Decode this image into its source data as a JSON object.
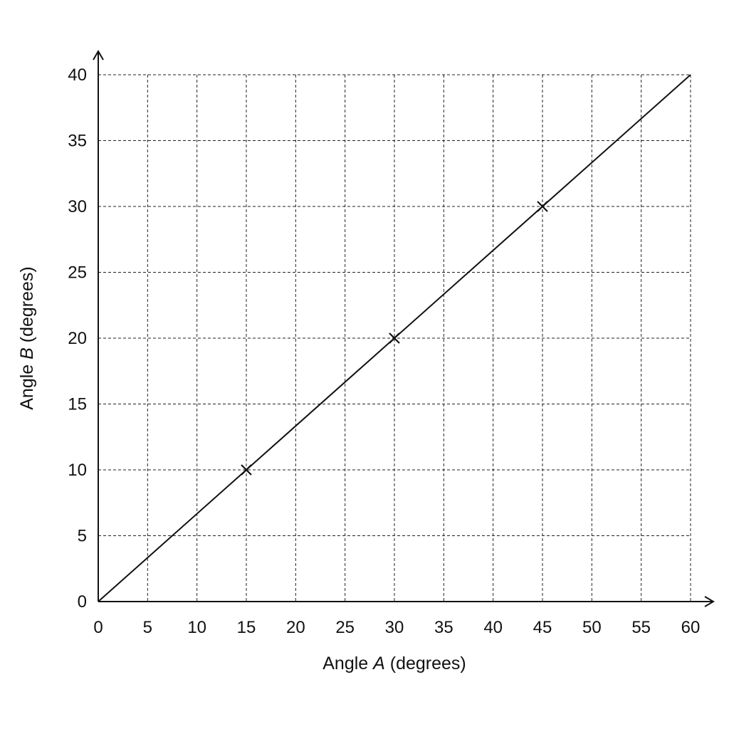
{
  "chart_data": {
    "type": "line",
    "title": "",
    "xlabel": {
      "prefix": "Angle ",
      "symbol": "A",
      "suffix": " (degrees)"
    },
    "ylabel": {
      "prefix": "Angle ",
      "symbol": "B",
      "suffix": " (degrees)"
    },
    "xlim": [
      0,
      60
    ],
    "ylim": [
      0,
      40
    ],
    "x_ticks": [
      0,
      5,
      10,
      15,
      20,
      25,
      30,
      35,
      40,
      45,
      50,
      55,
      60
    ],
    "y_ticks": [
      0,
      5,
      10,
      15,
      20,
      25,
      30,
      35,
      40
    ],
    "grid": true,
    "grid_style": "dashed",
    "line": {
      "x": [
        0,
        60
      ],
      "y": [
        0,
        40
      ]
    },
    "points": [
      {
        "x": 15,
        "y": 10,
        "marker": "x"
      },
      {
        "x": 30,
        "y": 20,
        "marker": "x"
      },
      {
        "x": 45,
        "y": 30,
        "marker": "x"
      }
    ],
    "colors": {
      "line": "#111111",
      "grid": "#222222",
      "text": "#111111"
    }
  }
}
